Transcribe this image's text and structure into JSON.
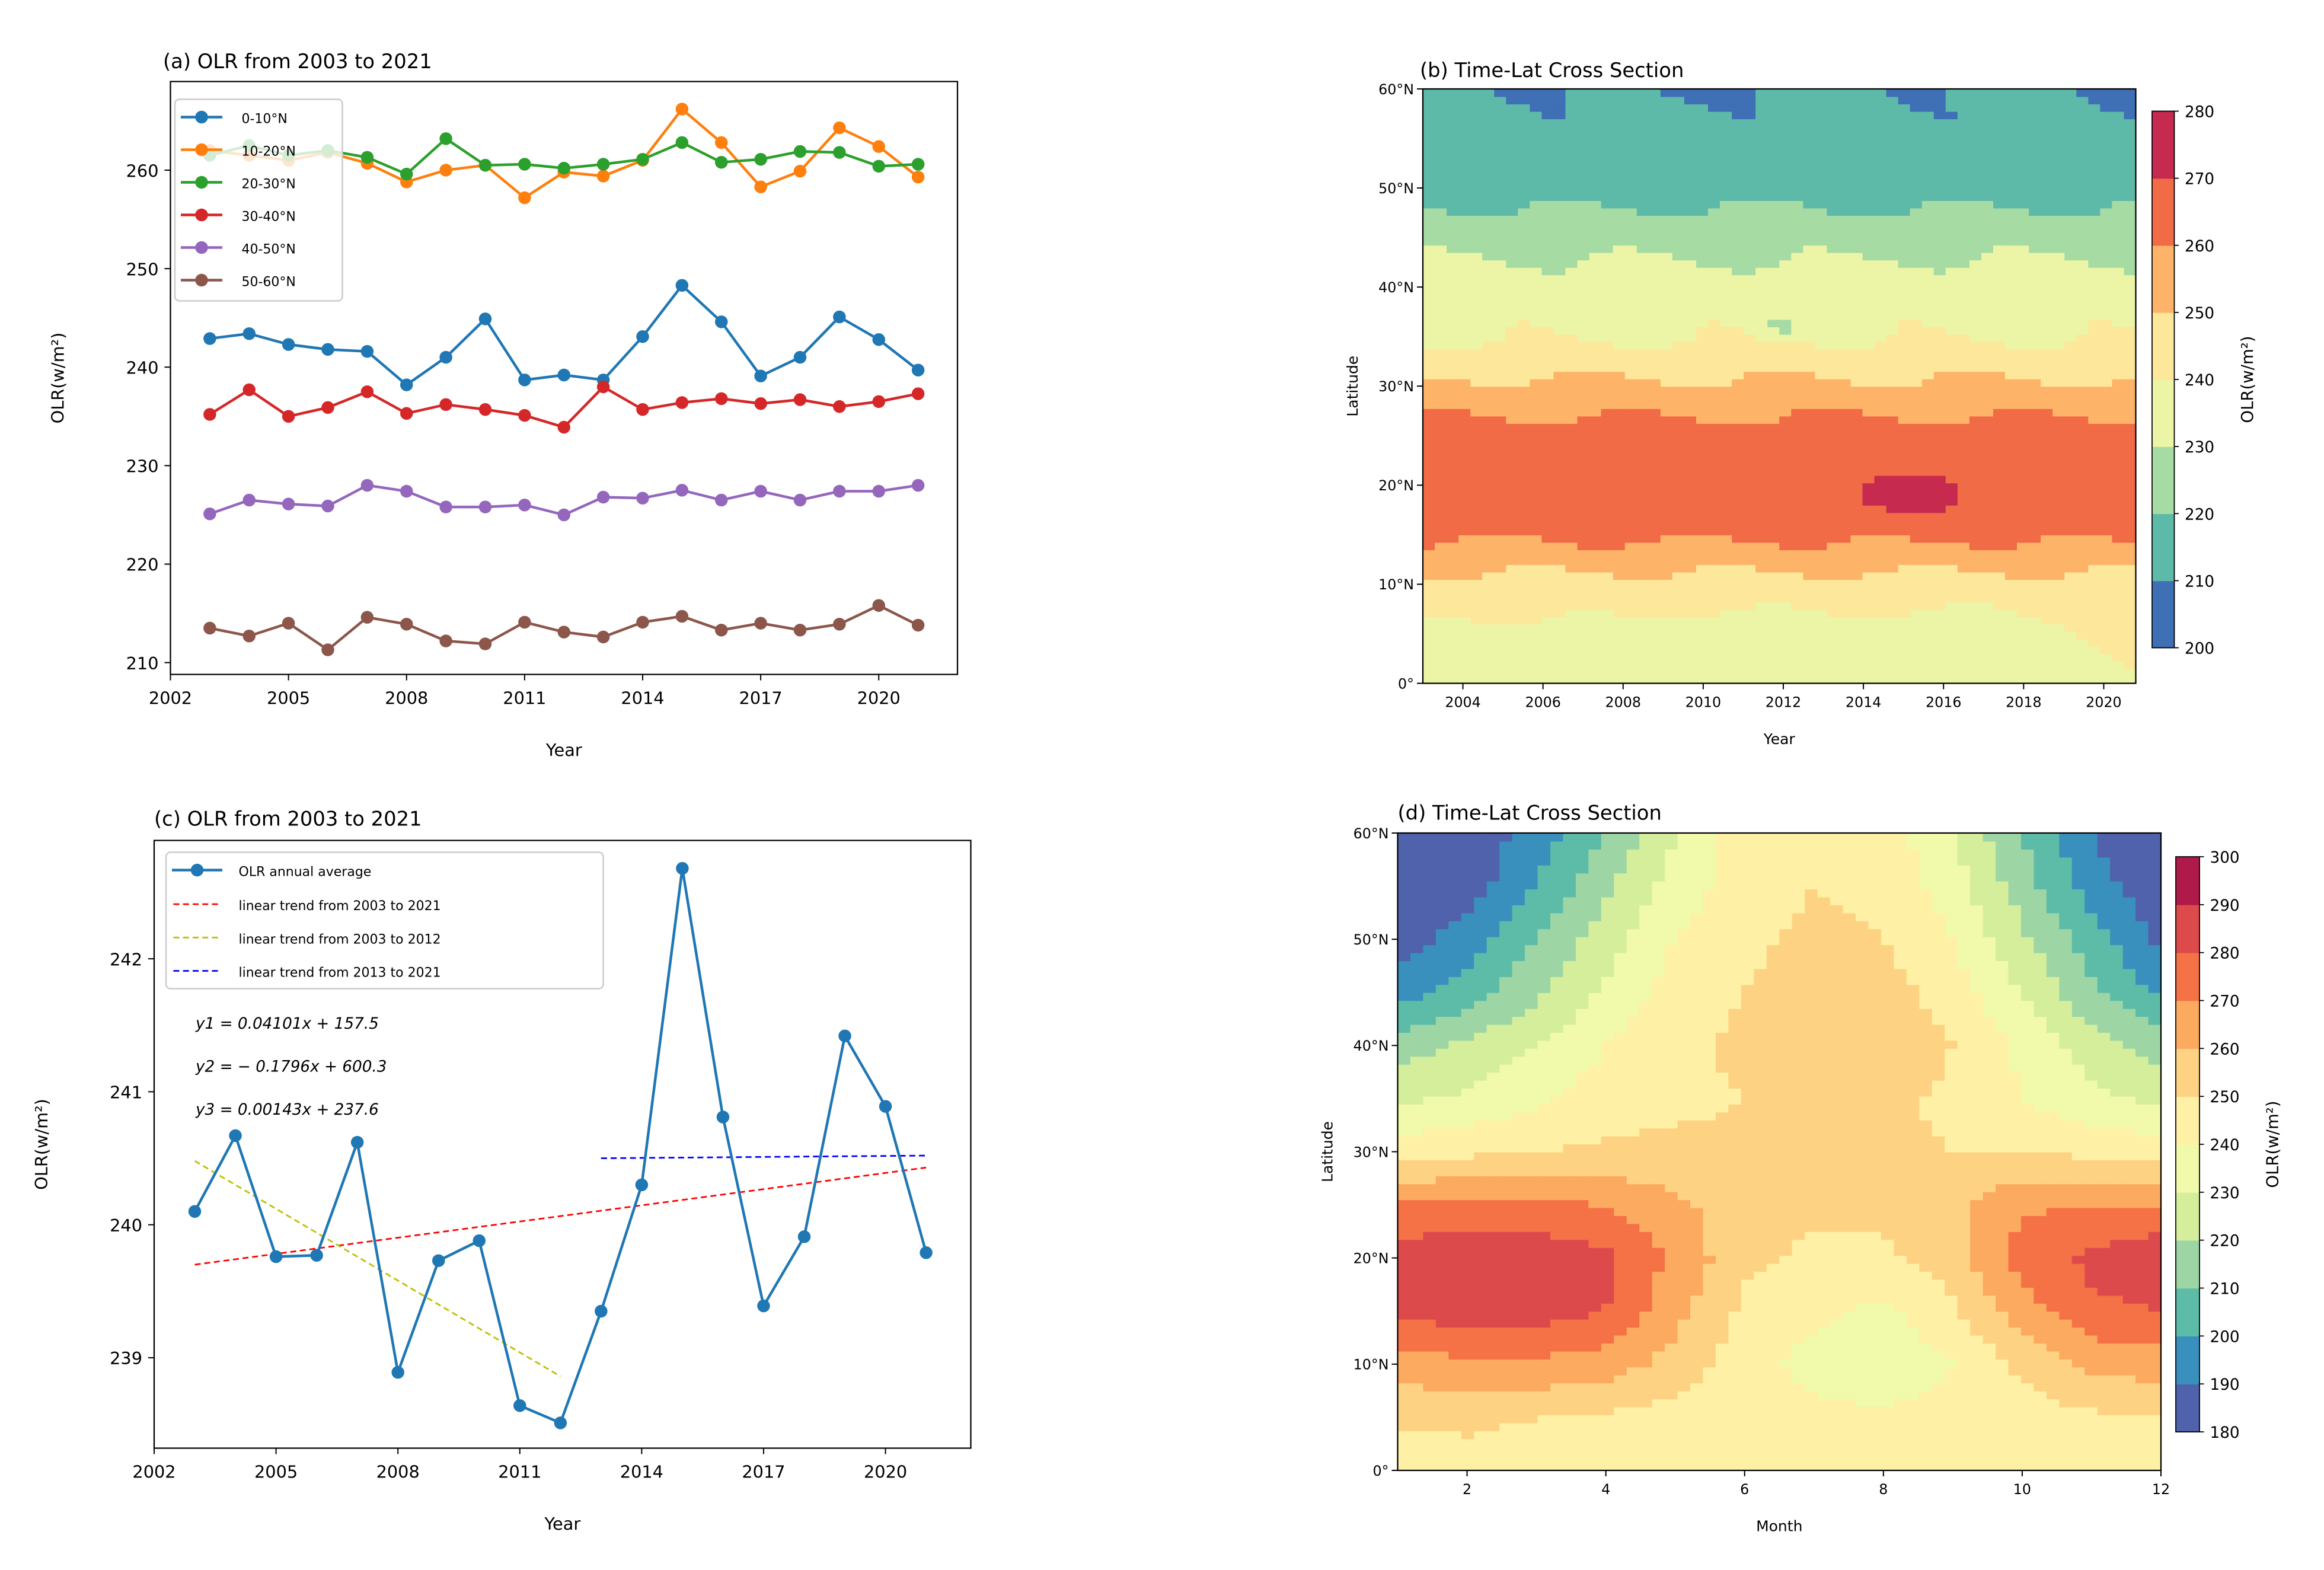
{
  "chart_data": [
    {
      "id": "a",
      "type": "line",
      "title": "(a) OLR from 2003 to 2021",
      "xlabel": "Year",
      "ylabel": "OLR(w/m²)",
      "xlim": [
        2002,
        2022
      ],
      "ylim": [
        208.8,
        269
      ],
      "xticks": [
        2002,
        2005,
        2008,
        2011,
        2014,
        2017,
        2020
      ],
      "yticks": [
        210,
        220,
        230,
        240,
        250,
        260
      ],
      "legend_position": "upper-left",
      "x": [
        2003,
        2004,
        2005,
        2006,
        2007,
        2008,
        2009,
        2010,
        2011,
        2012,
        2013,
        2014,
        2015,
        2016,
        2017,
        2018,
        2019,
        2020,
        2021
      ],
      "series": [
        {
          "name": "0-10°N",
          "color": "#1f77b4",
          "values": [
            242.9,
            243.4,
            242.3,
            241.8,
            241.6,
            238.2,
            241.0,
            244.9,
            238.7,
            239.2,
            238.7,
            243.1,
            248.3,
            244.6,
            239.1,
            241.0,
            245.1,
            242.8,
            239.7
          ]
        },
        {
          "name": "10-20°N",
          "color": "#ff7f0e",
          "values": [
            262.0,
            261.5,
            261.0,
            261.8,
            260.7,
            258.8,
            260.0,
            260.5,
            257.2,
            259.8,
            259.4,
            261.0,
            266.2,
            262.8,
            258.3,
            259.9,
            264.3,
            262.4,
            259.3
          ]
        },
        {
          "name": "20-30°N",
          "color": "#2ca02c",
          "values": [
            261.5,
            262.5,
            261.5,
            262.0,
            261.3,
            259.6,
            263.2,
            260.5,
            260.6,
            260.2,
            260.6,
            261.1,
            262.8,
            260.8,
            261.1,
            261.9,
            261.8,
            260.4,
            260.6
          ]
        },
        {
          "name": "30-40°N",
          "color": "#d62728",
          "values": [
            235.2,
            237.7,
            235.0,
            235.9,
            237.5,
            235.3,
            236.2,
            235.7,
            235.1,
            233.9,
            238.0,
            235.7,
            236.4,
            236.8,
            236.3,
            236.7,
            236.0,
            236.5,
            237.3
          ]
        },
        {
          "name": "40-50°N",
          "color": "#9467bd",
          "values": [
            225.1,
            226.5,
            226.1,
            225.9,
            228.0,
            227.4,
            225.8,
            225.8,
            226.0,
            225.0,
            226.8,
            226.7,
            227.5,
            226.5,
            227.4,
            226.5,
            227.4,
            227.4,
            228.0
          ]
        },
        {
          "name": "50-60°N",
          "color": "#8c564b",
          "values": [
            213.5,
            212.7,
            214.0,
            211.3,
            214.6,
            213.9,
            212.2,
            211.9,
            214.1,
            213.1,
            212.6,
            214.1,
            214.7,
            213.3,
            214.0,
            213.3,
            213.9,
            215.8,
            213.8
          ]
        }
      ]
    },
    {
      "id": "b",
      "type": "heatmap",
      "title": "(b) Time-Lat Cross Section",
      "xlabel": "Year",
      "ylabel": "Latitude",
      "colorbar_label": "OLR(w/m²)",
      "xlim": [
        2003,
        2020.8
      ],
      "ylim": [
        0,
        60
      ],
      "xticks": [
        2004,
        2006,
        2008,
        2010,
        2012,
        2014,
        2016,
        2018,
        2020
      ],
      "yticks": [
        "0°",
        "10°N",
        "20°N",
        "30°N",
        "40°N",
        "50°N",
        "60°N"
      ],
      "levels": [
        200,
        210,
        220,
        230,
        240,
        250,
        260,
        270,
        280
      ],
      "colors": [
        "#3f6fb5",
        "#5ebaa8",
        "#a7dba4",
        "#ebf5a5",
        "#fde79a",
        "#fdb468",
        "#f06b46",
        "#c62a4f"
      ],
      "lat": [
        0,
        5,
        10,
        15,
        20,
        25,
        30,
        35,
        40,
        45,
        50,
        55,
        60
      ],
      "lat_profile": [
        238,
        239,
        246,
        262,
        266,
        265,
        252,
        239,
        235,
        226,
        216,
        213,
        211
      ],
      "anomalies": [
        {
          "year": 2015,
          "lat": 19,
          "value": 273,
          "radius": 2.5
        },
        {
          "year": 2012,
          "lat": 36,
          "value": 226,
          "radius": 0.8
        },
        {
          "year": 2010,
          "lat": 60,
          "value": 205,
          "radius": 1.2
        },
        {
          "year": 2006,
          "lat": 60,
          "value": 205,
          "radius": 0.5
        },
        {
          "year": 2016,
          "lat": 4,
          "value": 232,
          "radius": 3
        },
        {
          "year": 2011,
          "lat": 4,
          "value": 233,
          "radius": 3
        },
        {
          "year": 2005,
          "lat": 3,
          "value": 234,
          "radius": 3
        }
      ]
    },
    {
      "id": "c",
      "type": "line",
      "title": "(c) OLR from 2003 to 2021",
      "xlabel": "Year",
      "ylabel": "OLR(w/m²)",
      "xlim": [
        2002,
        2022.1
      ],
      "ylim": [
        238.32,
        242.89
      ],
      "xticks": [
        2002,
        2005,
        2008,
        2011,
        2014,
        2017,
        2020
      ],
      "yticks": [
        239,
        240,
        241,
        242
      ],
      "legend_position": "upper-left",
      "x": [
        2003,
        2004,
        2005,
        2006,
        2007,
        2008,
        2009,
        2010,
        2011,
        2012,
        2013,
        2014,
        2015,
        2016,
        2017,
        2018,
        2019,
        2020,
        2021
      ],
      "series": [
        {
          "name": "OLR annual average",
          "color": "#1f77b4",
          "values": [
            240.1,
            240.67,
            239.76,
            239.77,
            240.62,
            238.89,
            239.73,
            239.88,
            238.64,
            238.51,
            239.35,
            240.3,
            242.68,
            240.81,
            239.39,
            239.91,
            241.42,
            240.89,
            239.79
          ]
        }
      ],
      "trends": [
        {
          "name": "linear trend from 2003 to 2021",
          "color": "#ff0000",
          "x": [
            2003,
            2021
          ],
          "y": [
            239.7,
            240.43
          ]
        },
        {
          "name": "linear trend from 2003 to 2012",
          "color": "#bfbf00",
          "x": [
            2003,
            2012
          ],
          "y": [
            240.48,
            238.86
          ]
        },
        {
          "name": "linear trend from 2013 to 2021",
          "color": "#0000ff",
          "x": [
            2013,
            2021
          ],
          "y": [
            240.5,
            240.52
          ]
        }
      ],
      "equations": [
        "y1 = 0.04101x + 157.5",
        "y2 = − 0.1796x + 600.3",
        "y3 = 0.00143x + 237.6"
      ]
    },
    {
      "id": "d",
      "type": "heatmap",
      "title": "(d) Time-Lat Cross Section",
      "xlabel": "Month",
      "ylabel": "Latitude",
      "colorbar_label": "OLR(w/m²)",
      "xlim": [
        1,
        12
      ],
      "ylim": [
        0,
        60
      ],
      "xticks": [
        2,
        4,
        6,
        8,
        10,
        12
      ],
      "yticks": [
        "0°",
        "10°N",
        "20°N",
        "30°N",
        "40°N",
        "50°N",
        "60°N"
      ],
      "levels": [
        180,
        190,
        200,
        210,
        220,
        230,
        240,
        250,
        260,
        270,
        280,
        290,
        300
      ],
      "colors": [
        "#4f62ab",
        "#3a90bd",
        "#5dbca8",
        "#9dd6a4",
        "#d5ee9c",
        "#f1f9aa",
        "#fef0a5",
        "#fed283",
        "#fcaa5f",
        "#f47245",
        "#dd4a4c",
        "#b01a4a"
      ],
      "months": [
        1,
        2,
        3,
        4,
        5,
        6,
        7,
        8,
        9,
        10,
        11,
        12
      ],
      "lat": [
        0,
        5,
        10,
        15,
        20,
        25,
        30,
        35,
        40,
        45,
        50,
        55,
        60
      ],
      "values": [
        [
          245,
          246,
          245,
          245,
          245,
          244,
          243,
          243,
          244,
          245,
          245,
          245
        ],
        [
          252,
          252,
          250,
          248,
          246,
          244,
          243,
          242,
          244,
          246,
          248,
          250
        ],
        [
          265,
          268,
          268,
          265,
          256,
          245,
          236,
          232,
          240,
          252,
          262,
          265
        ],
        [
          282,
          285,
          285,
          280,
          263,
          248,
          242,
          238,
          248,
          265,
          278,
          280
        ],
        [
          285,
          288,
          288,
          282,
          268,
          252,
          248,
          248,
          255,
          275,
          282,
          288
        ],
        [
          272,
          272,
          272,
          270,
          262,
          255,
          252,
          252,
          258,
          268,
          270,
          270
        ],
        [
          245,
          248,
          250,
          252,
          252,
          252,
          252,
          252,
          250,
          250,
          248,
          245
        ],
        [
          228,
          232,
          238,
          245,
          248,
          250,
          252,
          252,
          248,
          240,
          232,
          228
        ],
        [
          215,
          222,
          230,
          240,
          248,
          252,
          255,
          258,
          250,
          238,
          225,
          215
        ],
        [
          195,
          205,
          218,
          232,
          245,
          250,
          255,
          255,
          245,
          230,
          212,
          198
        ],
        [
          185,
          195,
          210,
          225,
          240,
          248,
          252,
          250,
          240,
          222,
          205,
          188
        ],
        [
          182,
          185,
          200,
          218,
          235,
          245,
          250,
          248,
          235,
          215,
          195,
          183
        ],
        [
          180,
          182,
          195,
          210,
          230,
          245,
          250,
          245,
          230,
          210,
          190,
          180
        ]
      ]
    }
  ]
}
